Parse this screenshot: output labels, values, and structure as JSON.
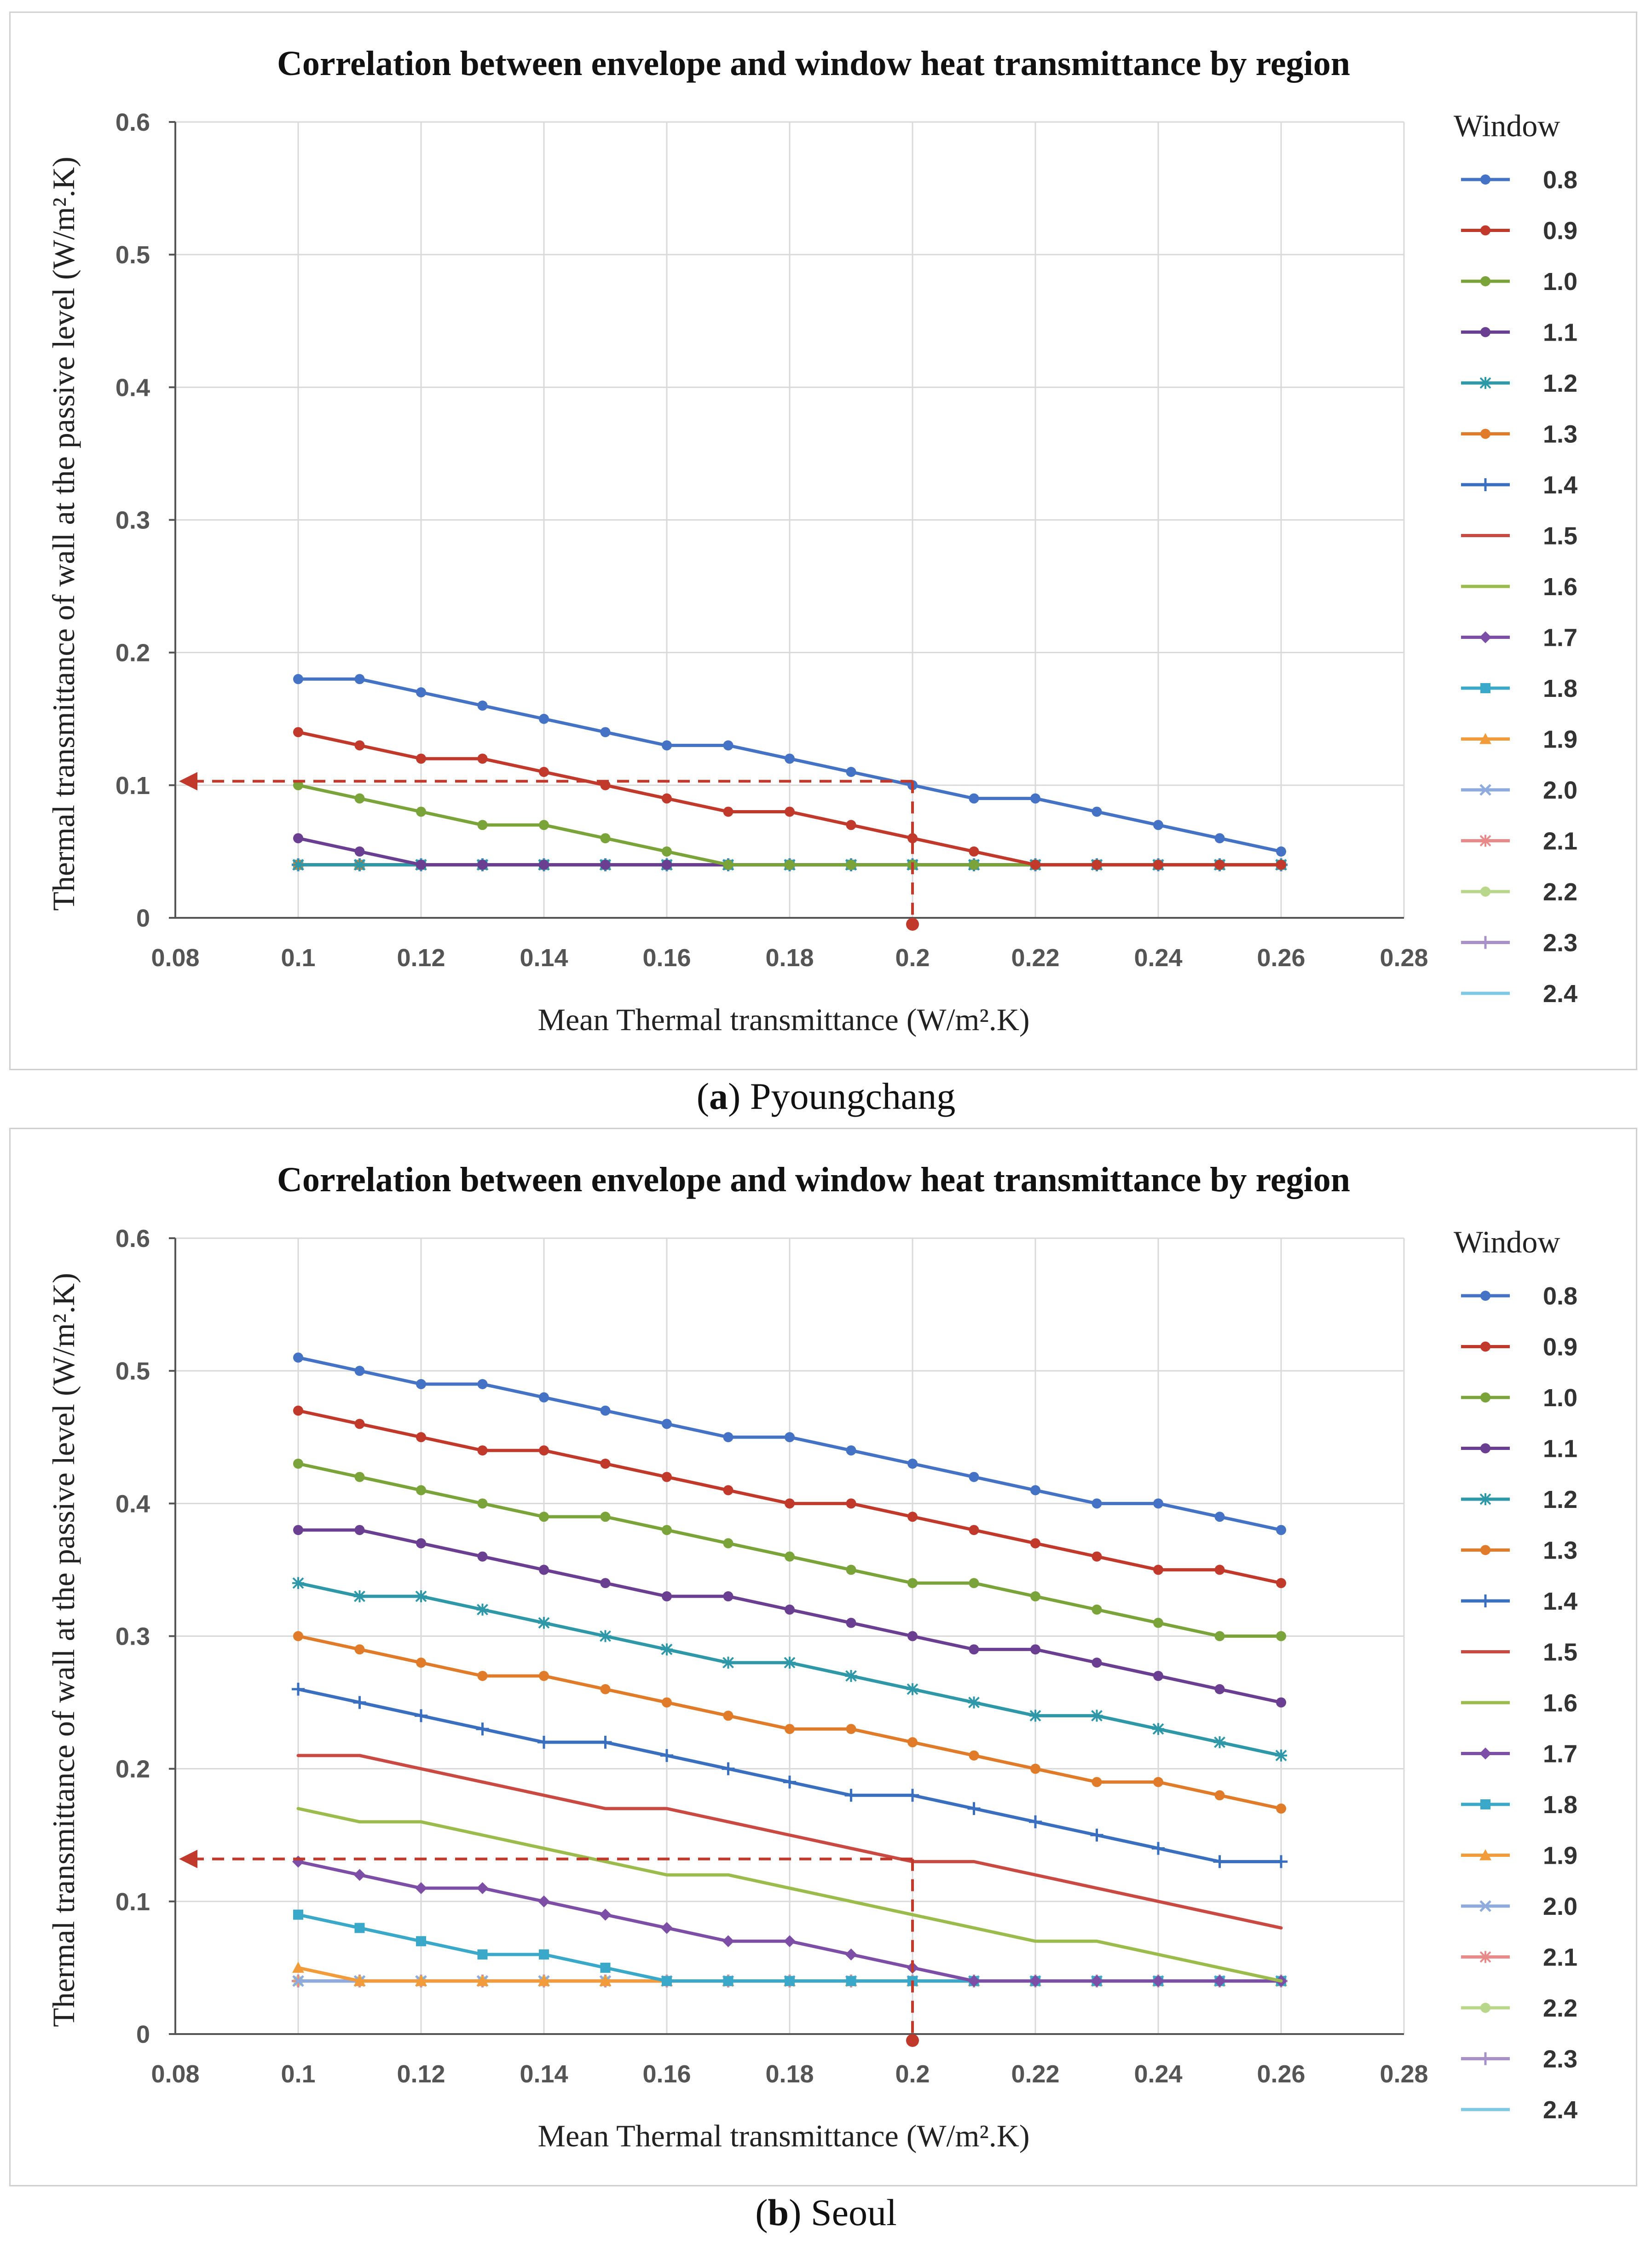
{
  "captions": [
    {
      "letter": "a",
      "name": "Pyoungchang"
    },
    {
      "letter": "b",
      "name": "Seoul"
    }
  ],
  "legend_title": "Window",
  "series_names": [
    "0.8",
    "0.9",
    "1.0",
    "1.1",
    "1.2",
    "1.3",
    "1.4",
    "1.5",
    "1.6",
    "1.7",
    "1.8",
    "1.9",
    "2.0",
    "2.1",
    "2.2",
    "2.3",
    "2.4"
  ],
  "series_colors": [
    "#4472c4",
    "#c0392b",
    "#7aa33a",
    "#6a3f91",
    "#2f98a8",
    "#e07b2a",
    "#3a6fc0",
    "#c94a43",
    "#9bbb4d",
    "#7d4ea5",
    "#3aa8c8",
    "#f29b3a",
    "#8faadc",
    "#e8898a",
    "#b8d78a",
    "#a890c8",
    "#7ec8e3"
  ],
  "series_markers": [
    "circle",
    "circle",
    "circle",
    "circle",
    "star",
    "circle",
    "plus",
    "none",
    "none",
    "diamond",
    "square",
    "triangle",
    "x",
    "star",
    "circle",
    "plus",
    "none"
  ],
  "chart_data": [
    {
      "type": "line",
      "title": "Correlation between envelope and window heat transmittance by region",
      "xlabel": "Mean Thermal transmittance  (W/m².K)",
      "ylabel": "Thermal transmittance  of wall at the passive level  (W/m².K)",
      "xlim": [
        0.08,
        0.28
      ],
      "ylim": [
        0,
        0.6
      ],
      "x_ticks": [
        "0.08",
        "0.1",
        "0.12",
        "0.14",
        "0.16",
        "0.18",
        "0.2",
        "0.22",
        "0.24",
        "0.26",
        "0.28"
      ],
      "y_ticks": [
        "0",
        "0.1",
        "0.2",
        "0.3",
        "0.4",
        "0.5",
        "0.6"
      ],
      "x": [
        0.1,
        0.11,
        0.12,
        0.13,
        0.14,
        0.15,
        0.16,
        0.17,
        0.18,
        0.19,
        0.2,
        0.21,
        0.22,
        0.23,
        0.24,
        0.25,
        0.26
      ],
      "guide": {
        "x": 0.2,
        "y": 0.103
      },
      "series": [
        {
          "name": "0.8",
          "values": [
            0.18,
            0.18,
            0.17,
            0.16,
            0.15,
            0.14,
            0.13,
            0.13,
            0.12,
            0.11,
            0.1,
            0.09,
            0.09,
            0.08,
            0.07,
            0.06,
            0.05
          ]
        },
        {
          "name": "0.9",
          "values": [
            0.14,
            0.13,
            0.12,
            0.12,
            0.11,
            0.1,
            0.09,
            0.08,
            0.08,
            0.07,
            0.06,
            0.05,
            0.04,
            0.04,
            0.04,
            0.04,
            0.04
          ]
        },
        {
          "name": "1.0",
          "values": [
            0.1,
            0.09,
            0.08,
            0.07,
            0.07,
            0.06,
            0.05,
            0.04,
            0.04,
            0.04,
            0.04,
            0.04,
            0.04,
            0.04,
            0.04,
            0.04,
            0.04
          ]
        },
        {
          "name": "1.1",
          "values": [
            0.06,
            0.05,
            0.04,
            0.04,
            0.04,
            0.04,
            0.04,
            0.04,
            0.04,
            0.04,
            0.04,
            0.04,
            0.04,
            0.04,
            0.04,
            0.04,
            0.04
          ]
        },
        {
          "name": "1.2",
          "values": [
            0.04,
            0.04,
            0.04,
            0.04,
            0.04,
            0.04,
            0.04,
            0.04,
            0.04,
            0.04,
            0.04,
            0.04,
            0.04,
            0.04,
            0.04,
            0.04,
            0.04
          ]
        },
        {
          "name": "1.3",
          "values": [
            0.04,
            0.04,
            0.04,
            0.04,
            0.04,
            0.04,
            0.04,
            0.04,
            0.04,
            0.04,
            0.04,
            0.04,
            0.04,
            0.04,
            0.04,
            0.04,
            0.04
          ]
        },
        {
          "name": "1.4",
          "values": [
            0.04,
            0.04,
            0.04,
            0.04,
            0.04,
            0.04,
            0.04,
            0.04,
            0.04,
            0.04,
            0.04,
            0.04,
            0.04,
            0.04,
            0.04,
            0.04,
            0.04
          ]
        },
        {
          "name": "1.5",
          "values": [
            0.04,
            0.04,
            0.04,
            0.04,
            0.04,
            0.04,
            0.04,
            0.04,
            0.04,
            0.04,
            0.04,
            0.04,
            0.04,
            0.04,
            0.04,
            0.04,
            0.04
          ]
        },
        {
          "name": "1.6",
          "values": [
            0.04,
            0.04,
            0.04,
            0.04,
            0.04,
            0.04,
            0.04,
            0.04,
            0.04,
            0.04,
            0.04,
            0.04,
            0.04,
            0.04,
            0.04,
            0.04,
            0.04
          ]
        },
        {
          "name": "1.7",
          "values": [
            0.04,
            0.04,
            0.04,
            0.04,
            0.04,
            0.04,
            0.04,
            0.04,
            0.04,
            0.04,
            0.04,
            0.04,
            0.04,
            0.04,
            0.04,
            0.04,
            0.04
          ]
        },
        {
          "name": "1.8",
          "values": [
            0.04,
            0.04,
            0.04,
            0.04,
            0.04,
            0.04,
            0.04,
            0.04,
            0.04,
            0.04,
            0.04,
            0.04,
            0.04,
            0.04,
            0.04,
            0.04,
            0.04
          ]
        },
        {
          "name": "1.9",
          "values": [
            0.04,
            0.04,
            0.04,
            0.04,
            0.04,
            0.04,
            0.04,
            0.04,
            0.04,
            0.04,
            0.04,
            0.04,
            0.04,
            0.04,
            0.04,
            0.04,
            0.04
          ]
        },
        {
          "name": "2.0",
          "values": [
            0.04,
            0.04,
            0.04,
            0.04,
            0.04,
            0.04,
            0.04,
            0.04,
            0.04,
            0.04,
            0.04,
            0.04,
            0.04,
            0.04,
            0.04,
            0.04,
            0.04
          ]
        },
        {
          "name": "2.1",
          "values": [
            0.04,
            0.04,
            0.04,
            0.04,
            0.04,
            0.04,
            0.04,
            0.04,
            0.04,
            0.04,
            0.04,
            0.04,
            0.04,
            0.04,
            0.04,
            0.04,
            0.04
          ]
        },
        {
          "name": "2.2",
          "values": [
            0.04,
            0.04,
            0.04,
            0.04,
            0.04,
            0.04,
            0.04,
            0.04,
            0.04,
            0.04,
            0.04,
            0.04,
            0.04,
            0.04,
            0.04,
            0.04,
            0.04
          ]
        },
        {
          "name": "2.3",
          "values": [
            0.04,
            0.04,
            0.04,
            0.04,
            0.04,
            0.04,
            0.04,
            0.04,
            0.04,
            0.04,
            0.04,
            0.04,
            0.04,
            0.04,
            0.04,
            0.04,
            0.04
          ]
        },
        {
          "name": "2.4",
          "values": [
            0.04,
            0.04,
            0.04,
            0.04,
            0.04,
            0.04,
            0.04,
            0.04,
            0.04,
            0.04,
            0.04,
            0.04,
            0.04,
            0.04,
            0.04,
            0.04,
            0.04
          ]
        }
      ]
    },
    {
      "type": "line",
      "title": "Correlation between envelope and window heat transmittance by region",
      "xlabel": "Mean Thermal transmittance  (W/m².K)",
      "ylabel": "Thermal transmittance  of wall at the passive  level  (W/m².K)",
      "xlim": [
        0.08,
        0.28
      ],
      "ylim": [
        0,
        0.6
      ],
      "x_ticks": [
        "0.08",
        "0.1",
        "0.12",
        "0.14",
        "0.16",
        "0.18",
        "0.2",
        "0.22",
        "0.24",
        "0.26",
        "0.28"
      ],
      "y_ticks": [
        "0",
        "0.1",
        "0.2",
        "0.3",
        "0.4",
        "0.5",
        "0.6"
      ],
      "x": [
        0.1,
        0.11,
        0.12,
        0.13,
        0.14,
        0.15,
        0.16,
        0.17,
        0.18,
        0.19,
        0.2,
        0.21,
        0.22,
        0.23,
        0.24,
        0.25,
        0.26
      ],
      "guide": {
        "x": 0.2,
        "y": 0.132
      },
      "series": [
        {
          "name": "0.8",
          "values": [
            0.51,
            0.5,
            0.49,
            0.49,
            0.48,
            0.47,
            0.46,
            0.45,
            0.45,
            0.44,
            0.43,
            0.42,
            0.41,
            0.4,
            0.4,
            0.39,
            0.38
          ]
        },
        {
          "name": "0.9",
          "values": [
            0.47,
            0.46,
            0.45,
            0.44,
            0.44,
            0.43,
            0.42,
            0.41,
            0.4,
            0.4,
            0.39,
            0.38,
            0.37,
            0.36,
            0.35,
            0.35,
            0.34
          ]
        },
        {
          "name": "1.0",
          "values": [
            0.43,
            0.42,
            0.41,
            0.4,
            0.39,
            0.39,
            0.38,
            0.37,
            0.36,
            0.35,
            0.34,
            0.34,
            0.33,
            0.32,
            0.31,
            0.3,
            0.3
          ]
        },
        {
          "name": "1.1",
          "values": [
            0.38,
            0.38,
            0.37,
            0.36,
            0.35,
            0.34,
            0.33,
            0.33,
            0.32,
            0.31,
            0.3,
            0.29,
            0.29,
            0.28,
            0.27,
            0.26,
            0.25
          ]
        },
        {
          "name": "1.2",
          "values": [
            0.34,
            0.33,
            0.33,
            0.32,
            0.31,
            0.3,
            0.29,
            0.28,
            0.28,
            0.27,
            0.26,
            0.25,
            0.24,
            0.24,
            0.23,
            0.22,
            0.21
          ]
        },
        {
          "name": "1.3",
          "values": [
            0.3,
            0.29,
            0.28,
            0.27,
            0.27,
            0.26,
            0.25,
            0.24,
            0.23,
            0.23,
            0.22,
            0.21,
            0.2,
            0.19,
            0.19,
            0.18,
            0.17
          ]
        },
        {
          "name": "1.4",
          "values": [
            0.26,
            0.25,
            0.24,
            0.23,
            0.22,
            0.22,
            0.21,
            0.2,
            0.19,
            0.18,
            0.18,
            0.17,
            0.16,
            0.15,
            0.14,
            0.13,
            0.13
          ]
        },
        {
          "name": "1.5",
          "values": [
            0.21,
            0.21,
            0.2,
            0.19,
            0.18,
            0.17,
            0.17,
            0.16,
            0.15,
            0.14,
            0.13,
            0.13,
            0.12,
            0.11,
            0.1,
            0.09,
            0.08
          ]
        },
        {
          "name": "1.6",
          "values": [
            0.17,
            0.16,
            0.16,
            0.15,
            0.14,
            0.13,
            0.12,
            0.12,
            0.11,
            0.1,
            0.09,
            0.08,
            0.07,
            0.07,
            0.06,
            0.05,
            0.04
          ]
        },
        {
          "name": "1.7",
          "values": [
            0.13,
            0.12,
            0.11,
            0.11,
            0.1,
            0.09,
            0.08,
            0.07,
            0.07,
            0.06,
            0.05,
            0.04,
            0.04,
            0.04,
            0.04,
            0.04,
            0.04
          ]
        },
        {
          "name": "1.8",
          "values": [
            0.09,
            0.08,
            0.07,
            0.06,
            0.06,
            0.05,
            0.04,
            0.04,
            0.04,
            0.04,
            0.04,
            0.04,
            0.04,
            0.04,
            0.04,
            0.04,
            0.04
          ]
        },
        {
          "name": "1.9",
          "values": [
            0.05,
            0.04,
            0.04,
            0.04,
            0.04,
            0.04,
            0.04,
            0.04,
            0.04,
            0.04,
            0.04,
            0.04,
            0.04,
            0.04,
            0.04,
            0.04,
            0.04
          ]
        },
        {
          "name": "2.0",
          "values": [
            0.04,
            0.04,
            0.04,
            0.04,
            0.04,
            0.04,
            0.04,
            0.04,
            0.04,
            0.04,
            0.04,
            0.04,
            0.04,
            0.04,
            0.04,
            0.04,
            0.04
          ]
        },
        {
          "name": "2.1",
          "values": [
            0.04,
            0.04,
            0.04,
            0.04,
            0.04,
            0.04,
            0.04,
            0.04,
            0.04,
            0.04,
            0.04,
            0.04,
            0.04,
            0.04,
            0.04,
            0.04,
            0.04
          ]
        },
        {
          "name": "2.2",
          "values": [
            0.04,
            0.04,
            0.04,
            0.04,
            0.04,
            0.04,
            0.04,
            0.04,
            0.04,
            0.04,
            0.04,
            0.04,
            0.04,
            0.04,
            0.04,
            0.04,
            0.04
          ]
        },
        {
          "name": "2.3",
          "values": [
            0.04,
            0.04,
            0.04,
            0.04,
            0.04,
            0.04,
            0.04,
            0.04,
            0.04,
            0.04,
            0.04,
            0.04,
            0.04,
            0.04,
            0.04,
            0.04,
            0.04
          ]
        },
        {
          "name": "2.4",
          "values": [
            0.04,
            0.04,
            0.04,
            0.04,
            0.04,
            0.04,
            0.04,
            0.04,
            0.04,
            0.04,
            0.04,
            0.04,
            0.04,
            0.04,
            0.04,
            0.04,
            0.04
          ]
        }
      ]
    }
  ]
}
